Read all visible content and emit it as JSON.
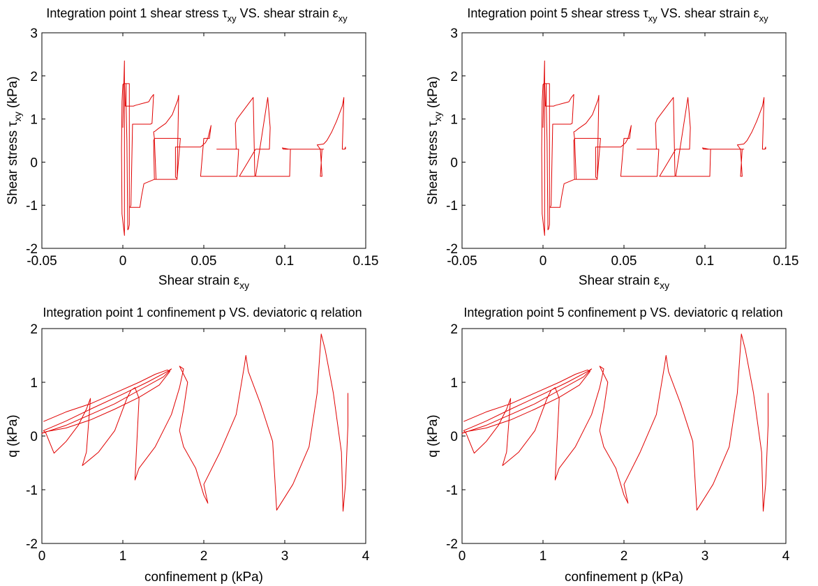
{
  "chart_data": [
    {
      "id": "tl",
      "type": "line",
      "title": {
        "main": "Integration point 1 shear stress τ",
        "sub1": "xy",
        "mid": " VS. shear strain ε",
        "sub2": "xy"
      },
      "xlabel": {
        "main": "Shear strain ε",
        "sub": "xy"
      },
      "ylabel": {
        "main": "Shear stress τ",
        "sub": "xy",
        "unit": " (kPa)"
      },
      "xlim": [
        -0.05,
        0.15
      ],
      "ylim": [
        -2,
        3
      ],
      "xticks": [
        -0.05,
        0,
        0.05,
        0.1,
        0.15
      ],
      "xtick_labels": [
        "-0.05",
        "0",
        "0.05",
        "0.1",
        "0.15"
      ],
      "yticks": [
        -2,
        -1,
        0,
        1,
        2,
        3
      ],
      "ytick_labels": [
        "-2",
        "-1",
        "0",
        "1",
        "2",
        "3"
      ],
      "grid": false,
      "series": [
        {
          "color": "#e00000",
          "x": [
            0,
            0.0005,
            0.001,
            0.001,
            -0.0005,
            -0.0008,
            -0.0005,
            0,
            0.0005,
            0.001,
            0.0015,
            0.002,
            0.002,
            0.0025,
            0.003,
            0.003,
            0.0035,
            0.004,
            0.004,
            0.002,
            0.0015,
            0.002,
            0.003,
            0.0035,
            0.004,
            0.005,
            0.0055,
            0.006,
            0.0065,
            0.008,
            0.009,
            0.012,
            0.016,
            0.0175,
            0.019,
            0.018,
            0.017,
            0.006,
            0.005,
            0.0045,
            0.0055,
            0.009,
            0.0105,
            0.0115,
            0.013,
            0.0195,
            0.0205,
            0.0195,
            0.019,
            0.02,
            0.022,
            0.0265,
            0.0305,
            0.034,
            0.0345,
            0.0335,
            0.0195,
            0.019,
            0.0195,
            0.0205,
            0.022,
            0.025,
            0.031,
            0.0355,
            0.0335,
            0.0325,
            0.0325,
            0.033,
            0.048,
            0.051,
            0.0525,
            0.0545,
            0.0535,
            0.052,
            0.05,
            0.048,
            0.048,
            0.069,
            0.0705,
            0.0715,
            0.068,
            0.058,
            0.07,
            0.0695,
            0.0705,
            0.0805,
            0.0815,
            0.0795,
            0.072,
            0.082,
            0.0835,
            0.0845,
            0.0875,
            0.0895,
            0.0905,
            0.091,
            0.0895,
            0.082,
            0.103,
            0.1035,
            0.1025,
            0.0985,
            0.099,
            0.102,
            0.104,
            0.124,
            0.123,
            0.122,
            0.123,
            0.122,
            0.12,
            0.124,
            0.126,
            0.129,
            0.132,
            0.1355,
            0.1365,
            0.1355,
            0.137,
            0.1375,
            0.1375
          ],
          "y": [
            0.8,
            1.7,
            2.35,
            -1.7,
            -1.2,
            0.3,
            1.4,
            1.8,
            1.82,
            1.82,
            1.82,
            1.82,
            1.4,
            0.5,
            -1.45,
            -1.57,
            -1.55,
            -1.45,
            1.82,
            1.82,
            1.3,
            1.3,
            1.3,
            1.3,
            1.3,
            1.3,
            1.3,
            1.3,
            1.3,
            1.32,
            1.33,
            1.36,
            1.4,
            1.5,
            1.57,
            0.9,
            0.88,
            0.88,
            -1.0,
            -1.05,
            -1.05,
            -1.05,
            -1.05,
            -0.8,
            -0.5,
            -0.4,
            -0.4,
            0.55,
            0.7,
            0.72,
            0.78,
            0.9,
            1.1,
            1.45,
            1.55,
            -0.4,
            -0.4,
            0.5,
            0.55,
            0.55,
            0.55,
            0.55,
            0.55,
            0.55,
            -0.38,
            -0.35,
            0.35,
            0.35,
            0.35,
            0.45,
            0.55,
            0.85,
            0.55,
            0.55,
            0.55,
            -0.33,
            -0.33,
            -0.33,
            -0.33,
            0.3,
            0.3,
            0.3,
            0.3,
            0.9,
            1.0,
            1.5,
            -0.33,
            -0.33,
            -0.33,
            0.3,
            0.3,
            0.3,
            0.3,
            0.3,
            0.3,
            0.8,
            1.5,
            -0.33,
            -0.33,
            0.3,
            0.3,
            0.33,
            0.3,
            0.3,
            0.3,
            0.3,
            0.3,
            -0.33,
            -0.33,
            0.3,
            0.4,
            0.42,
            0.5,
            0.7,
            0.95,
            1.3,
            1.5,
            0.3,
            0.3,
            0.35,
            0.3
          ]
        }
      ]
    },
    {
      "id": "tr",
      "type": "line",
      "title": {
        "main": "Integration point 5 shear stress τ",
        "sub1": "xy",
        "mid": " VS. shear strain ε",
        "sub2": "xy"
      },
      "xlabel": {
        "main": "Shear strain ε",
        "sub": "xy"
      },
      "ylabel": {
        "main": "Shear stress τ",
        "sub": "xy",
        "unit": " (kPa)"
      },
      "xlim": [
        -0.05,
        0.15
      ],
      "ylim": [
        -2,
        3
      ],
      "xticks": [
        -0.05,
        0,
        0.05,
        0.1,
        0.15
      ],
      "xtick_labels": [
        "-0.05",
        "0",
        "0.05",
        "0.1",
        "0.15"
      ],
      "yticks": [
        -2,
        -1,
        0,
        1,
        2,
        3
      ],
      "ytick_labels": [
        "-2",
        "-1",
        "0",
        "1",
        "2",
        "3"
      ],
      "grid": false,
      "series": [
        {
          "color": "#e00000",
          "x": [
            0,
            0.0005,
            0.001,
            0.001,
            -0.0005,
            -0.0008,
            -0.0005,
            0,
            0.0005,
            0.001,
            0.0015,
            0.002,
            0.002,
            0.0025,
            0.003,
            0.003,
            0.0035,
            0.004,
            0.004,
            0.002,
            0.0015,
            0.002,
            0.003,
            0.0035,
            0.004,
            0.005,
            0.0055,
            0.006,
            0.0065,
            0.008,
            0.009,
            0.012,
            0.016,
            0.0175,
            0.019,
            0.018,
            0.017,
            0.006,
            0.005,
            0.0045,
            0.0055,
            0.009,
            0.0105,
            0.0115,
            0.013,
            0.0195,
            0.0205,
            0.0195,
            0.019,
            0.02,
            0.022,
            0.0265,
            0.0305,
            0.034,
            0.0345,
            0.0335,
            0.0195,
            0.019,
            0.0195,
            0.0205,
            0.022,
            0.025,
            0.031,
            0.0355,
            0.0335,
            0.0325,
            0.0325,
            0.033,
            0.048,
            0.051,
            0.0525,
            0.0545,
            0.0535,
            0.052,
            0.05,
            0.048,
            0.048,
            0.069,
            0.0705,
            0.0715,
            0.068,
            0.058,
            0.07,
            0.0695,
            0.0705,
            0.0805,
            0.0815,
            0.0795,
            0.072,
            0.082,
            0.0835,
            0.0845,
            0.0875,
            0.0895,
            0.0905,
            0.091,
            0.0895,
            0.082,
            0.103,
            0.1035,
            0.1025,
            0.0985,
            0.099,
            0.102,
            0.104,
            0.124,
            0.123,
            0.122,
            0.123,
            0.122,
            0.12,
            0.124,
            0.126,
            0.129,
            0.132,
            0.1355,
            0.1365,
            0.1355,
            0.137,
            0.1375,
            0.1375
          ],
          "y": [
            0.8,
            1.7,
            2.35,
            -1.7,
            -1.2,
            0.3,
            1.4,
            1.8,
            1.82,
            1.82,
            1.82,
            1.82,
            1.4,
            0.5,
            -1.45,
            -1.57,
            -1.55,
            -1.45,
            1.82,
            1.82,
            1.3,
            1.3,
            1.3,
            1.3,
            1.3,
            1.3,
            1.3,
            1.3,
            1.3,
            1.32,
            1.33,
            1.36,
            1.4,
            1.5,
            1.57,
            0.9,
            0.88,
            0.88,
            -1.0,
            -1.05,
            -1.05,
            -1.05,
            -1.05,
            -0.8,
            -0.5,
            -0.4,
            -0.4,
            0.55,
            0.7,
            0.72,
            0.78,
            0.9,
            1.1,
            1.45,
            1.55,
            -0.4,
            -0.4,
            0.5,
            0.55,
            0.55,
            0.55,
            0.55,
            0.55,
            0.55,
            -0.38,
            -0.35,
            0.35,
            0.35,
            0.35,
            0.45,
            0.55,
            0.85,
            0.55,
            0.55,
            0.55,
            -0.33,
            -0.33,
            -0.33,
            -0.33,
            0.3,
            0.3,
            0.3,
            0.3,
            0.9,
            1.0,
            1.5,
            -0.33,
            -0.33,
            -0.33,
            0.3,
            0.3,
            0.3,
            0.3,
            0.3,
            0.3,
            0.8,
            1.5,
            -0.33,
            -0.33,
            0.3,
            0.3,
            0.33,
            0.3,
            0.3,
            0.3,
            0.3,
            0.3,
            -0.33,
            -0.33,
            0.3,
            0.4,
            0.42,
            0.5,
            0.7,
            0.95,
            1.3,
            1.5,
            0.3,
            0.3,
            0.35,
            0.3
          ]
        }
      ]
    },
    {
      "id": "bl",
      "type": "line",
      "title": {
        "main": "Integration point 1 confinement p VS. deviatoric q relation"
      },
      "xlabel": {
        "main": "confinement p (kPa)"
      },
      "ylabel": {
        "main": "q (kPa)"
      },
      "xlim": [
        0,
        4
      ],
      "ylim": [
        -2,
        2
      ],
      "xticks": [
        0,
        1,
        2,
        3,
        4
      ],
      "xtick_labels": [
        "0",
        "1",
        "2",
        "3",
        "4"
      ],
      "yticks": [
        -2,
        -1,
        0,
        1,
        2
      ],
      "ytick_labels": [
        "-2",
        "-1",
        "0",
        "1",
        "2"
      ],
      "grid": false,
      "series": [
        {
          "color": "#e00000",
          "x": [
            0.02,
            0.3,
            0.6,
            0.9,
            1.2,
            1.4,
            1.55,
            1.58,
            1.45,
            1.2,
            0.9,
            0.6,
            0.3,
            0.05,
            0,
            0.3,
            0.6,
            0.9,
            1.2,
            1.5,
            1.6,
            1.55,
            1.3,
            1.0,
            0.6,
            0.3,
            0.02,
            0.05,
            0.15,
            0.3,
            0.45,
            0.55,
            0.6,
            0.55,
            0.5,
            0.7,
            0.9,
            1.05,
            1.1,
            1.15,
            1.2,
            1.15,
            1.2,
            1.4,
            1.6,
            1.7,
            1.75,
            1.7,
            1.8,
            1.75,
            1.7,
            1.75,
            1.9,
            2.0,
            2.05,
            2.0,
            2.2,
            2.4,
            2.5,
            2.52,
            2.55,
            2.7,
            2.85,
            2.9,
            3.1,
            3.3,
            3.4,
            3.45,
            3.5,
            3.6,
            3.7,
            3.72,
            3.75,
            3.78,
            3.78
          ],
          "y": [
            0.27,
            0.45,
            0.6,
            0.8,
            1.0,
            1.15,
            1.23,
            1.2,
            0.95,
            0.72,
            0.5,
            0.3,
            0.15,
            0.08,
            0.05,
            0.2,
            0.4,
            0.6,
            0.85,
            1.1,
            1.25,
            1.2,
            1.0,
            0.78,
            0.5,
            0.28,
            0.1,
            0.05,
            -0.32,
            -0.1,
            0.2,
            0.5,
            0.7,
            -0.3,
            -0.55,
            -0.3,
            0.1,
            0.7,
            0.85,
            0.9,
            0.7,
            -0.82,
            -0.6,
            -0.2,
            0.4,
            0.9,
            1.25,
            1.3,
            1.0,
            0.5,
            0.1,
            -0.2,
            -0.6,
            -1.1,
            -1.25,
            -0.9,
            -0.3,
            0.4,
            1.3,
            1.5,
            1.2,
            0.6,
            -0.1,
            -1.38,
            -0.9,
            -0.2,
            0.8,
            1.9,
            1.6,
            0.8,
            -0.3,
            -1.4,
            -0.9,
            0.2,
            0.8
          ]
        }
      ]
    },
    {
      "id": "br",
      "type": "line",
      "title": {
        "main": "Integration point 5 confinement p VS. deviatoric q relation"
      },
      "xlabel": {
        "main": "confinement p (kPa)"
      },
      "ylabel": {
        "main": "q (kPa)"
      },
      "xlim": [
        0,
        4
      ],
      "ylim": [
        -2,
        2
      ],
      "xticks": [
        0,
        1,
        2,
        3,
        4
      ],
      "xtick_labels": [
        "0",
        "1",
        "2",
        "3",
        "4"
      ],
      "yticks": [
        -2,
        -1,
        0,
        1,
        2
      ],
      "ytick_labels": [
        "-2",
        "-1",
        "0",
        "1",
        "2"
      ],
      "grid": false,
      "series": [
        {
          "color": "#e00000",
          "x": [
            0.02,
            0.3,
            0.6,
            0.9,
            1.2,
            1.4,
            1.55,
            1.58,
            1.45,
            1.2,
            0.9,
            0.6,
            0.3,
            0.05,
            0,
            0.3,
            0.6,
            0.9,
            1.2,
            1.5,
            1.6,
            1.55,
            1.3,
            1.0,
            0.6,
            0.3,
            0.02,
            0.05,
            0.15,
            0.3,
            0.45,
            0.55,
            0.6,
            0.55,
            0.5,
            0.7,
            0.9,
            1.05,
            1.1,
            1.15,
            1.2,
            1.15,
            1.2,
            1.4,
            1.6,
            1.7,
            1.75,
            1.7,
            1.8,
            1.75,
            1.7,
            1.75,
            1.9,
            2.0,
            2.05,
            2.0,
            2.2,
            2.4,
            2.5,
            2.52,
            2.55,
            2.7,
            2.85,
            2.9,
            3.1,
            3.3,
            3.4,
            3.45,
            3.5,
            3.6,
            3.7,
            3.72,
            3.75,
            3.78,
            3.78
          ],
          "y": [
            0.27,
            0.45,
            0.6,
            0.8,
            1.0,
            1.15,
            1.23,
            1.2,
            0.95,
            0.72,
            0.5,
            0.3,
            0.15,
            0.08,
            0.05,
            0.2,
            0.4,
            0.6,
            0.85,
            1.1,
            1.25,
            1.2,
            1.0,
            0.78,
            0.5,
            0.28,
            0.1,
            0.05,
            -0.32,
            -0.1,
            0.2,
            0.5,
            0.7,
            -0.3,
            -0.55,
            -0.3,
            0.1,
            0.7,
            0.85,
            0.9,
            0.7,
            -0.82,
            -0.6,
            -0.2,
            0.4,
            0.9,
            1.25,
            1.3,
            1.0,
            0.5,
            0.1,
            -0.2,
            -0.6,
            -1.1,
            -1.25,
            -0.9,
            -0.3,
            0.4,
            1.3,
            1.5,
            1.2,
            0.6,
            -0.1,
            -1.38,
            -0.9,
            -0.2,
            0.8,
            1.9,
            1.6,
            0.8,
            -0.3,
            -1.4,
            -0.9,
            0.2,
            0.8
          ]
        }
      ]
    }
  ]
}
